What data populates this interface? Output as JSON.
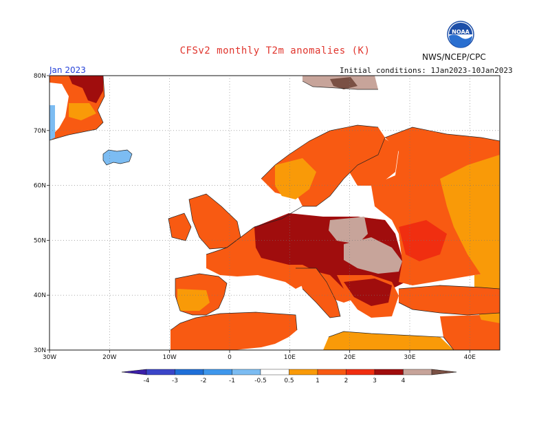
{
  "title": "CFSv2 monthly T2m anomalies (K)",
  "agency": "NWS/NCEP/CPC",
  "logo_text": "NOAA",
  "month": "Jan 2023",
  "initial_conditions": "Initial conditions: 1Jan2023-10Jan2023",
  "map": {
    "lon_range": [
      -30,
      45
    ],
    "lat_range": [
      30,
      80
    ],
    "lat_labels": [
      "80N",
      "70N",
      "60N",
      "50N",
      "40N",
      "30N"
    ],
    "lon_labels": [
      "30W",
      "20W",
      "10W",
      "0",
      "10E",
      "20E",
      "30E",
      "40E"
    ],
    "grid": "dotted"
  },
  "colorbar": {
    "labels": [
      "-4",
      "-3",
      "-2",
      "-1",
      "-0.5",
      "0.5",
      "1",
      "2",
      "3",
      "4"
    ],
    "colors": {
      "lt_m4": "#3b1fa8",
      "m4_m3": "#3a45c8",
      "m3_m2": "#1f6fd8",
      "m2_m1": "#3f97ec",
      "m1_m05": "#7cbcf2",
      "neutral": "#ffffff",
      "p05_p1": "#f99a08",
      "p1_p2": "#f85a12",
      "p2_p3": "#f02e10",
      "p3_p4": "#a00d0d",
      "p4_p5": "#c7a49a",
      "gt_p5": "#7a5044"
    }
  }
}
